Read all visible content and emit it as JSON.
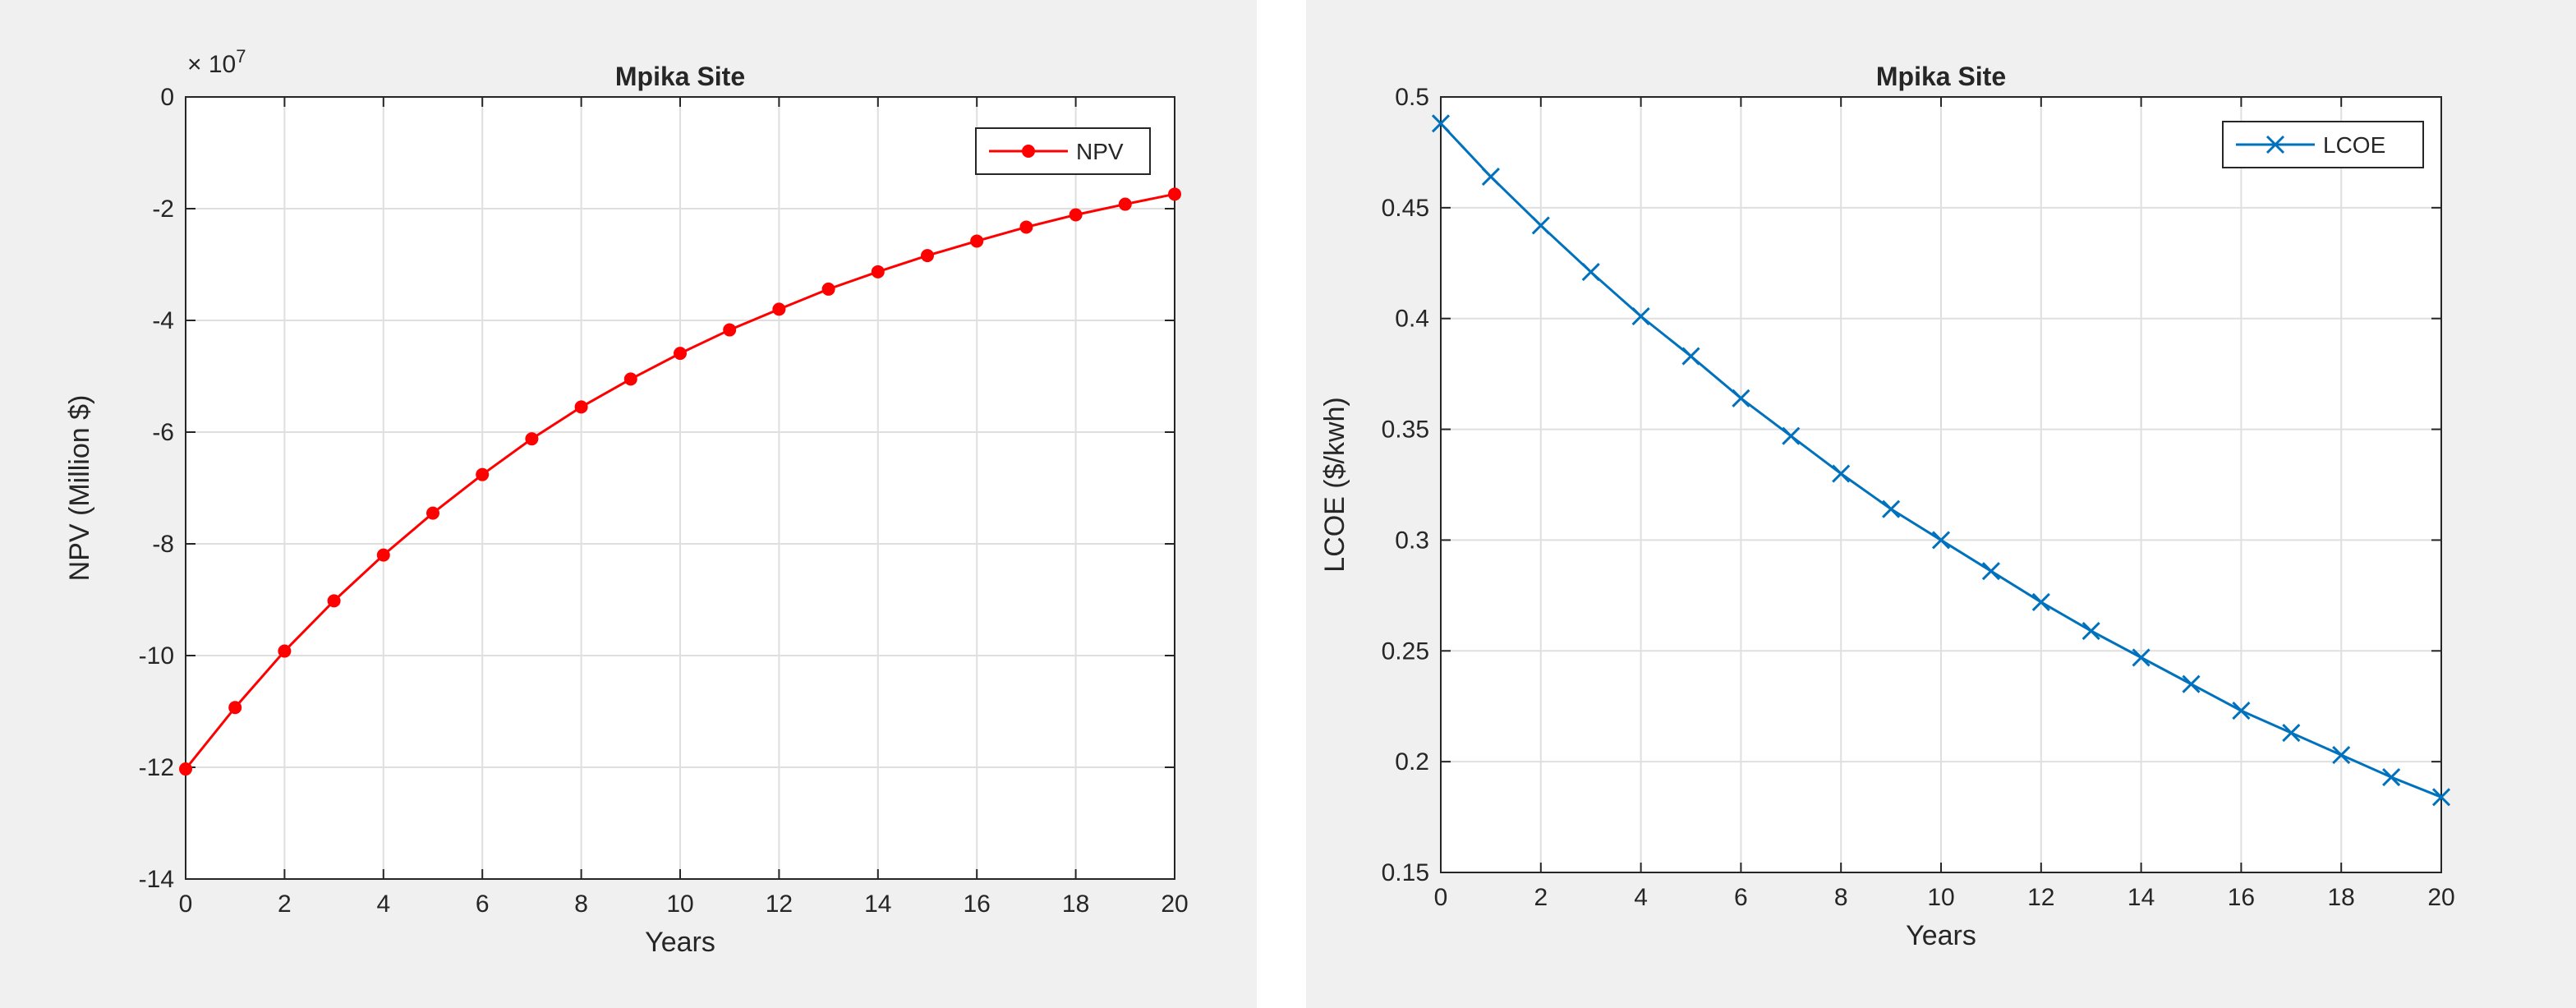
{
  "chart_data": [
    {
      "type": "line",
      "title": "Mpika Site",
      "xlabel": "Years",
      "ylabel": "NPV (Million $)",
      "y_exponent_label": "× 10",
      "y_exponent_power": "7",
      "xlim": [
        0,
        20
      ],
      "ylim": [
        -14,
        0
      ],
      "x_ticks": [
        0,
        2,
        4,
        6,
        8,
        10,
        12,
        14,
        16,
        18,
        20
      ],
      "x_tick_labels": [
        "0",
        "2",
        "4",
        "6",
        "8",
        "10",
        "12",
        "14",
        "16",
        "18",
        "20"
      ],
      "y_ticks": [
        0,
        -2,
        -4,
        -6,
        -8,
        -10,
        -12,
        -14
      ],
      "y_tick_labels": [
        "0",
        "-2",
        "-4",
        "-6",
        "-8",
        "-10",
        "-12",
        "-14"
      ],
      "grid": true,
      "legend_position": "top-right",
      "series": [
        {
          "name": "NPV",
          "color": "#ff0000",
          "marker": "filled-circle",
          "x": [
            0,
            1,
            2,
            3,
            4,
            5,
            6,
            7,
            8,
            9,
            10,
            11,
            12,
            13,
            14,
            15,
            16,
            17,
            18,
            19,
            20
          ],
          "y": [
            -12.03,
            -10.93,
            -9.92,
            -9.02,
            -8.2,
            -7.45,
            -6.76,
            -6.12,
            -5.55,
            -5.05,
            -4.59,
            -4.17,
            -3.8,
            -3.44,
            -3.13,
            -2.84,
            -2.58,
            -2.33,
            -2.11,
            -1.92,
            -1.74
          ]
        }
      ]
    },
    {
      "type": "line",
      "title": "Mpika Site",
      "xlabel": "Years",
      "ylabel": "LCOE ($/kwh)",
      "xlim": [
        0,
        20
      ],
      "ylim": [
        0.15,
        0.5
      ],
      "x_ticks": [
        0,
        2,
        4,
        6,
        8,
        10,
        12,
        14,
        16,
        18,
        20
      ],
      "x_tick_labels": [
        "0",
        "2",
        "4",
        "6",
        "8",
        "10",
        "12",
        "14",
        "16",
        "18",
        "20"
      ],
      "y_ticks": [
        0.5,
        0.45,
        0.4,
        0.35,
        0.3,
        0.25,
        0.2,
        0.15
      ],
      "y_tick_labels": [
        "0.5",
        "0.45",
        "0.4",
        "0.35",
        "0.3",
        "0.25",
        "0.2",
        "0.15"
      ],
      "grid": true,
      "legend_position": "top-right",
      "series": [
        {
          "name": "LCOE",
          "color": "#0072bd",
          "marker": "x",
          "x": [
            0,
            1,
            2,
            3,
            4,
            5,
            6,
            7,
            8,
            9,
            10,
            11,
            12,
            13,
            14,
            15,
            16,
            17,
            18,
            19,
            20
          ],
          "y": [
            0.488,
            0.464,
            0.442,
            0.421,
            0.401,
            0.383,
            0.364,
            0.347,
            0.33,
            0.314,
            0.3,
            0.286,
            0.272,
            0.259,
            0.247,
            0.235,
            0.223,
            0.213,
            0.203,
            0.193,
            0.184
          ]
        }
      ]
    }
  ]
}
